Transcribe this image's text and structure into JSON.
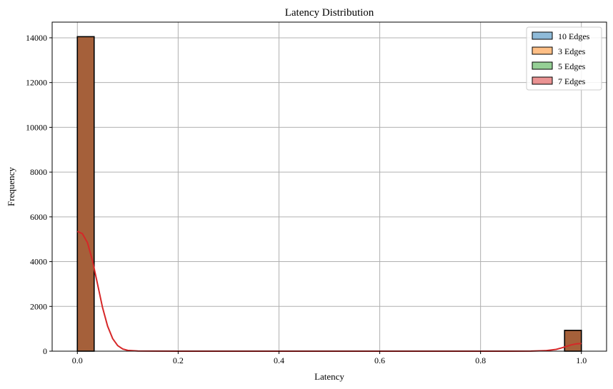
{
  "chart_data": {
    "type": "histogram",
    "title": "Latency Distribution",
    "xlabel": "Latency",
    "ylabel": "Frequency",
    "xlim": [
      -0.05,
      1.05
    ],
    "ylim": [
      0,
      14700
    ],
    "xticks": [
      "0.0",
      "0.2",
      "0.4",
      "0.6",
      "0.8",
      "1.0"
    ],
    "xtick_values": [
      0.0,
      0.2,
      0.4,
      0.6,
      0.8,
      1.0
    ],
    "yticks": [
      "0",
      "2000",
      "4000",
      "6000",
      "8000",
      "10000",
      "12000",
      "14000"
    ],
    "ytick_values": [
      0,
      2000,
      4000,
      6000,
      8000,
      10000,
      12000,
      14000
    ],
    "grid": true,
    "legend_position": "top-right",
    "bins": [
      {
        "start": 0.0,
        "end": 0.0333,
        "count": 14050
      },
      {
        "start": 0.9667,
        "end": 1.0,
        "count": 930
      }
    ],
    "bar_color": "#a5603a",
    "series": [
      {
        "name": "10 Edges",
        "color": "#1f77b4"
      },
      {
        "name": "3 Edges",
        "color": "#ff7f0e"
      },
      {
        "name": "5 Edges",
        "color": "#2ca02c"
      },
      {
        "name": "7 Edges",
        "color": "#d62728"
      }
    ],
    "kde": {
      "color": "#d62728",
      "points": [
        [
          0.0,
          5350
        ],
        [
          0.01,
          5250
        ],
        [
          0.02,
          4850
        ],
        [
          0.03,
          4050
        ],
        [
          0.04,
          3000
        ],
        [
          0.05,
          1950
        ],
        [
          0.06,
          1120
        ],
        [
          0.07,
          560
        ],
        [
          0.08,
          250
        ],
        [
          0.09,
          95
        ],
        [
          0.1,
          35
        ],
        [
          0.12,
          8
        ],
        [
          0.15,
          2
        ],
        [
          0.3,
          0
        ],
        [
          0.6,
          0
        ],
        [
          0.85,
          0
        ],
        [
          0.9,
          4
        ],
        [
          0.93,
          25
        ],
        [
          0.95,
          80
        ],
        [
          0.96,
          140
        ],
        [
          0.97,
          210
        ],
        [
          0.98,
          280
        ],
        [
          0.99,
          330
        ],
        [
          1.0,
          345
        ]
      ]
    }
  }
}
